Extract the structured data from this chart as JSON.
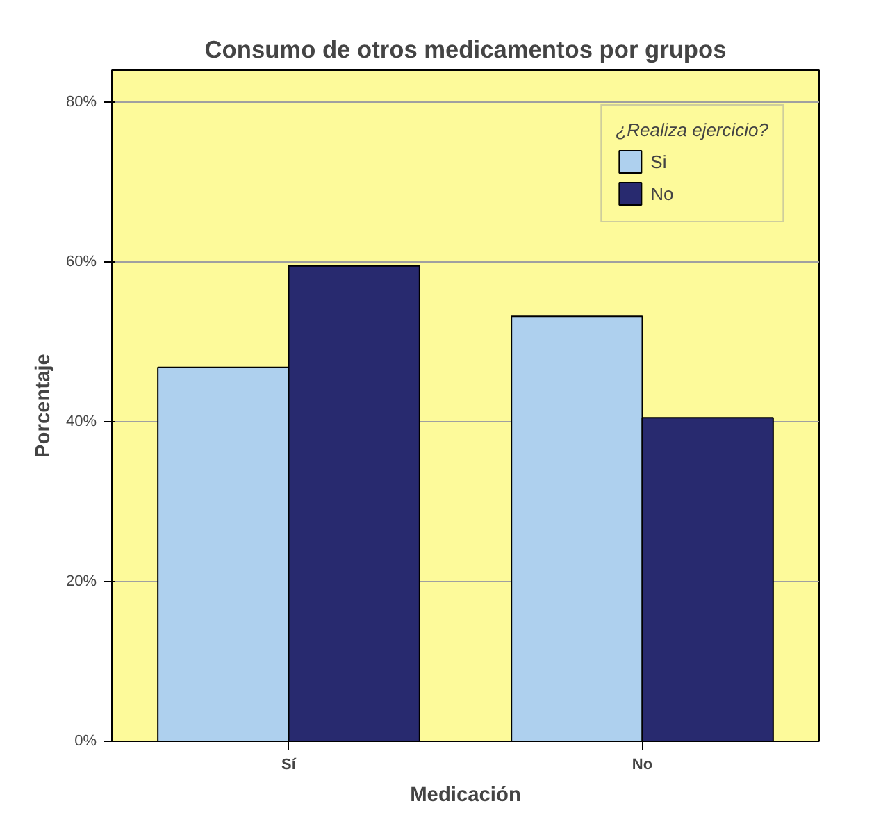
{
  "chart_data": {
    "type": "bar",
    "title": "Consumo de otros medicamentos por grupos",
    "xlabel": "Medicación",
    "ylabel": "Porcentaje",
    "legend_title": "¿Realiza ejercicio?",
    "categories": [
      "Sí",
      "No"
    ],
    "series": [
      {
        "name": "Si",
        "color": "#aed0ee",
        "values": [
          46.8,
          53.2
        ]
      },
      {
        "name": "No",
        "color": "#282a6f",
        "values": [
          59.5,
          40.5
        ]
      }
    ],
    "ylim": [
      0,
      84
    ],
    "yticks": [
      {
        "value": 0,
        "label": "0%"
      },
      {
        "value": 20,
        "label": "20%"
      },
      {
        "value": 40,
        "label": "40%"
      },
      {
        "value": 60,
        "label": "60%"
      },
      {
        "value": 80,
        "label": "80%"
      }
    ],
    "grid": "y",
    "legend": "top right"
  }
}
